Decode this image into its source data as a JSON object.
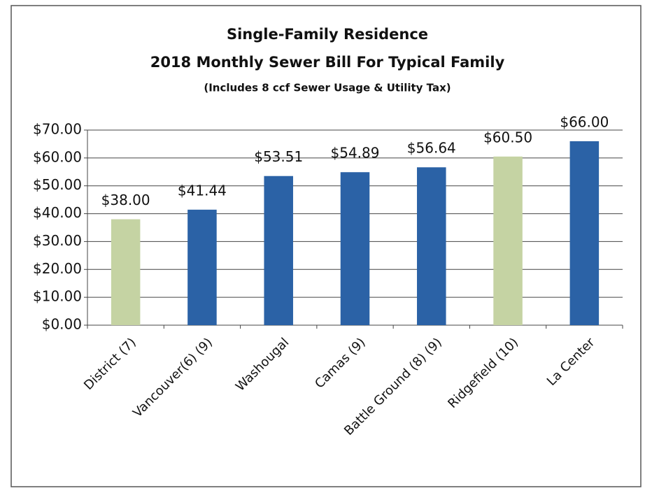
{
  "chart_data": {
    "type": "bar",
    "title": "Single-Family Residence",
    "subtitle": "2018 Monthly Sewer Bill For Typical Family",
    "annotation": "(Includes 8 ccf Sewer Usage & Utility Tax)",
    "categories": [
      "District (7)",
      "Vancouver(6) (9)",
      "Washougal",
      "Camas (9)",
      "Battle Ground (8) (9)",
      "Ridgefield (10)",
      "La Center"
    ],
    "values": [
      38,
      41.44,
      53.51,
      54.89,
      56.64,
      60.5,
      66
    ],
    "value_labels": [
      "$38.00",
      "$41.44",
      "$53.51",
      "$54.89",
      "$56.64",
      "$60.50",
      "$66.00"
    ],
    "colors": [
      "#c5d3a3",
      "#2b62a6",
      "#2b62a6",
      "#2b62a6",
      "#2b62a6",
      "#c5d3a3",
      "#2b62a6"
    ],
    "ylim": [
      0,
      70
    ],
    "yticks": [
      {
        "value": 0,
        "label": "$0.00"
      },
      {
        "value": 10,
        "label": "$10.00"
      },
      {
        "value": 20,
        "label": "$20.00"
      },
      {
        "value": 30,
        "label": "$30.00"
      },
      {
        "value": 40,
        "label": "$40.00"
      },
      {
        "value": 50,
        "label": "$50.00"
      },
      {
        "value": 60,
        "label": "$60.00"
      },
      {
        "value": 70,
        "label": "$70.00"
      }
    ],
    "grid": true
  }
}
